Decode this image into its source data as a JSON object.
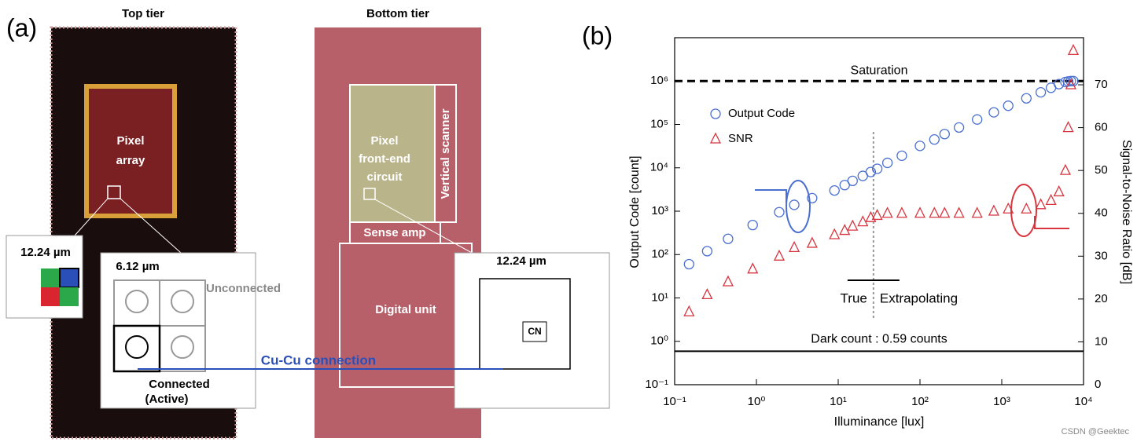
{
  "panel_a": {
    "label": "(a)",
    "top_tier": "Top tier",
    "bottom_tier": "Bottom tier",
    "pixel_array": [
      "Pixel",
      "array"
    ],
    "pixel_pitch": "12.24 µm",
    "sub_pitch": "6.12 µm",
    "unconnected": "Unconnected",
    "connected": [
      "Connected",
      "(Active)"
    ],
    "cu_cu": "Cu-Cu connection",
    "front_end": [
      "Pixel",
      "front-end",
      "circuit"
    ],
    "vertical_scanner": "Vertical scanner",
    "sense_amp": "Sense amp",
    "digital_unit": "Digital unit",
    "circuit_pitch": "12.24 µm",
    "cn": "CN"
  },
  "chart_data": {
    "type": "scatter",
    "panel_label": "(b)",
    "x_label": "Illuminance [lux]",
    "y_label": "Output Code [count]",
    "y2_label": "Signal-to-Noise Ratio [dB]",
    "xlog": true,
    "ylog": true,
    "xlim": [
      0.1,
      10000
    ],
    "ylim": [
      0.1,
      10000000
    ],
    "y2lim": [
      0,
      81
    ],
    "xticks": [
      {
        "value": 0.1,
        "label": "10⁻¹"
      },
      {
        "value": 1,
        "label": "10⁰"
      },
      {
        "value": 10,
        "label": "10¹"
      },
      {
        "value": 100,
        "label": "10²"
      },
      {
        "value": 1000,
        "label": "10³"
      },
      {
        "value": 10000,
        "label": "10⁴"
      }
    ],
    "yticks": [
      {
        "value": 0.1,
        "label": "10⁻¹"
      },
      {
        "value": 1,
        "label": "10⁰"
      },
      {
        "value": 10,
        "label": "10¹"
      },
      {
        "value": 100,
        "label": "10²"
      },
      {
        "value": 1000,
        "label": "10³"
      },
      {
        "value": 10000,
        "label": "10⁴"
      },
      {
        "value": 100000,
        "label": "10⁵"
      },
      {
        "value": 1000000,
        "label": "10⁶"
      }
    ],
    "y2ticks": [
      0,
      10,
      20,
      30,
      40,
      50,
      60,
      70
    ],
    "x": [
      0.15,
      0.25,
      0.45,
      0.9,
      1.9,
      2.9,
      4.8,
      9,
      12,
      15,
      20,
      25,
      30,
      40,
      60,
      100,
      150,
      200,
      300,
      500,
      800,
      1200,
      2000,
      3000,
      4000,
      5000,
      6000,
      6500,
      7000,
      7500
    ],
    "series": [
      {
        "name": "Output Code",
        "color": "#4a6fd0",
        "marker": "circle",
        "values": [
          60,
          120,
          230,
          480,
          950,
          1400,
          2000,
          3000,
          4000,
          5000,
          6500,
          8000,
          9500,
          13000,
          19000,
          32000,
          45000,
          60000,
          85000,
          130000,
          190000,
          270000,
          400000,
          550000,
          700000,
          850000,
          950000,
          980000,
          1000000,
          1000000
        ]
      },
      {
        "name": "SNR",
        "color": "#d8353f",
        "marker": "triangle",
        "axis": "y2",
        "values": [
          17,
          21,
          24,
          27,
          30,
          32,
          33,
          35,
          36,
          37,
          38,
          39,
          39.5,
          40,
          40,
          40,
          40,
          40,
          40,
          40,
          40.5,
          41,
          41,
          42,
          43,
          45,
          50,
          60,
          70,
          78
        ]
      }
    ],
    "legend": "upper left",
    "saturation": {
      "y": 1000000,
      "label": "Saturation"
    },
    "dark_count": {
      "y": 0.59,
      "label": "Dark count : 0.59 counts"
    },
    "boundary": {
      "x": 27,
      "left": "True",
      "right": "Extrapolating"
    }
  },
  "watermark": "CSDN @Geektec"
}
